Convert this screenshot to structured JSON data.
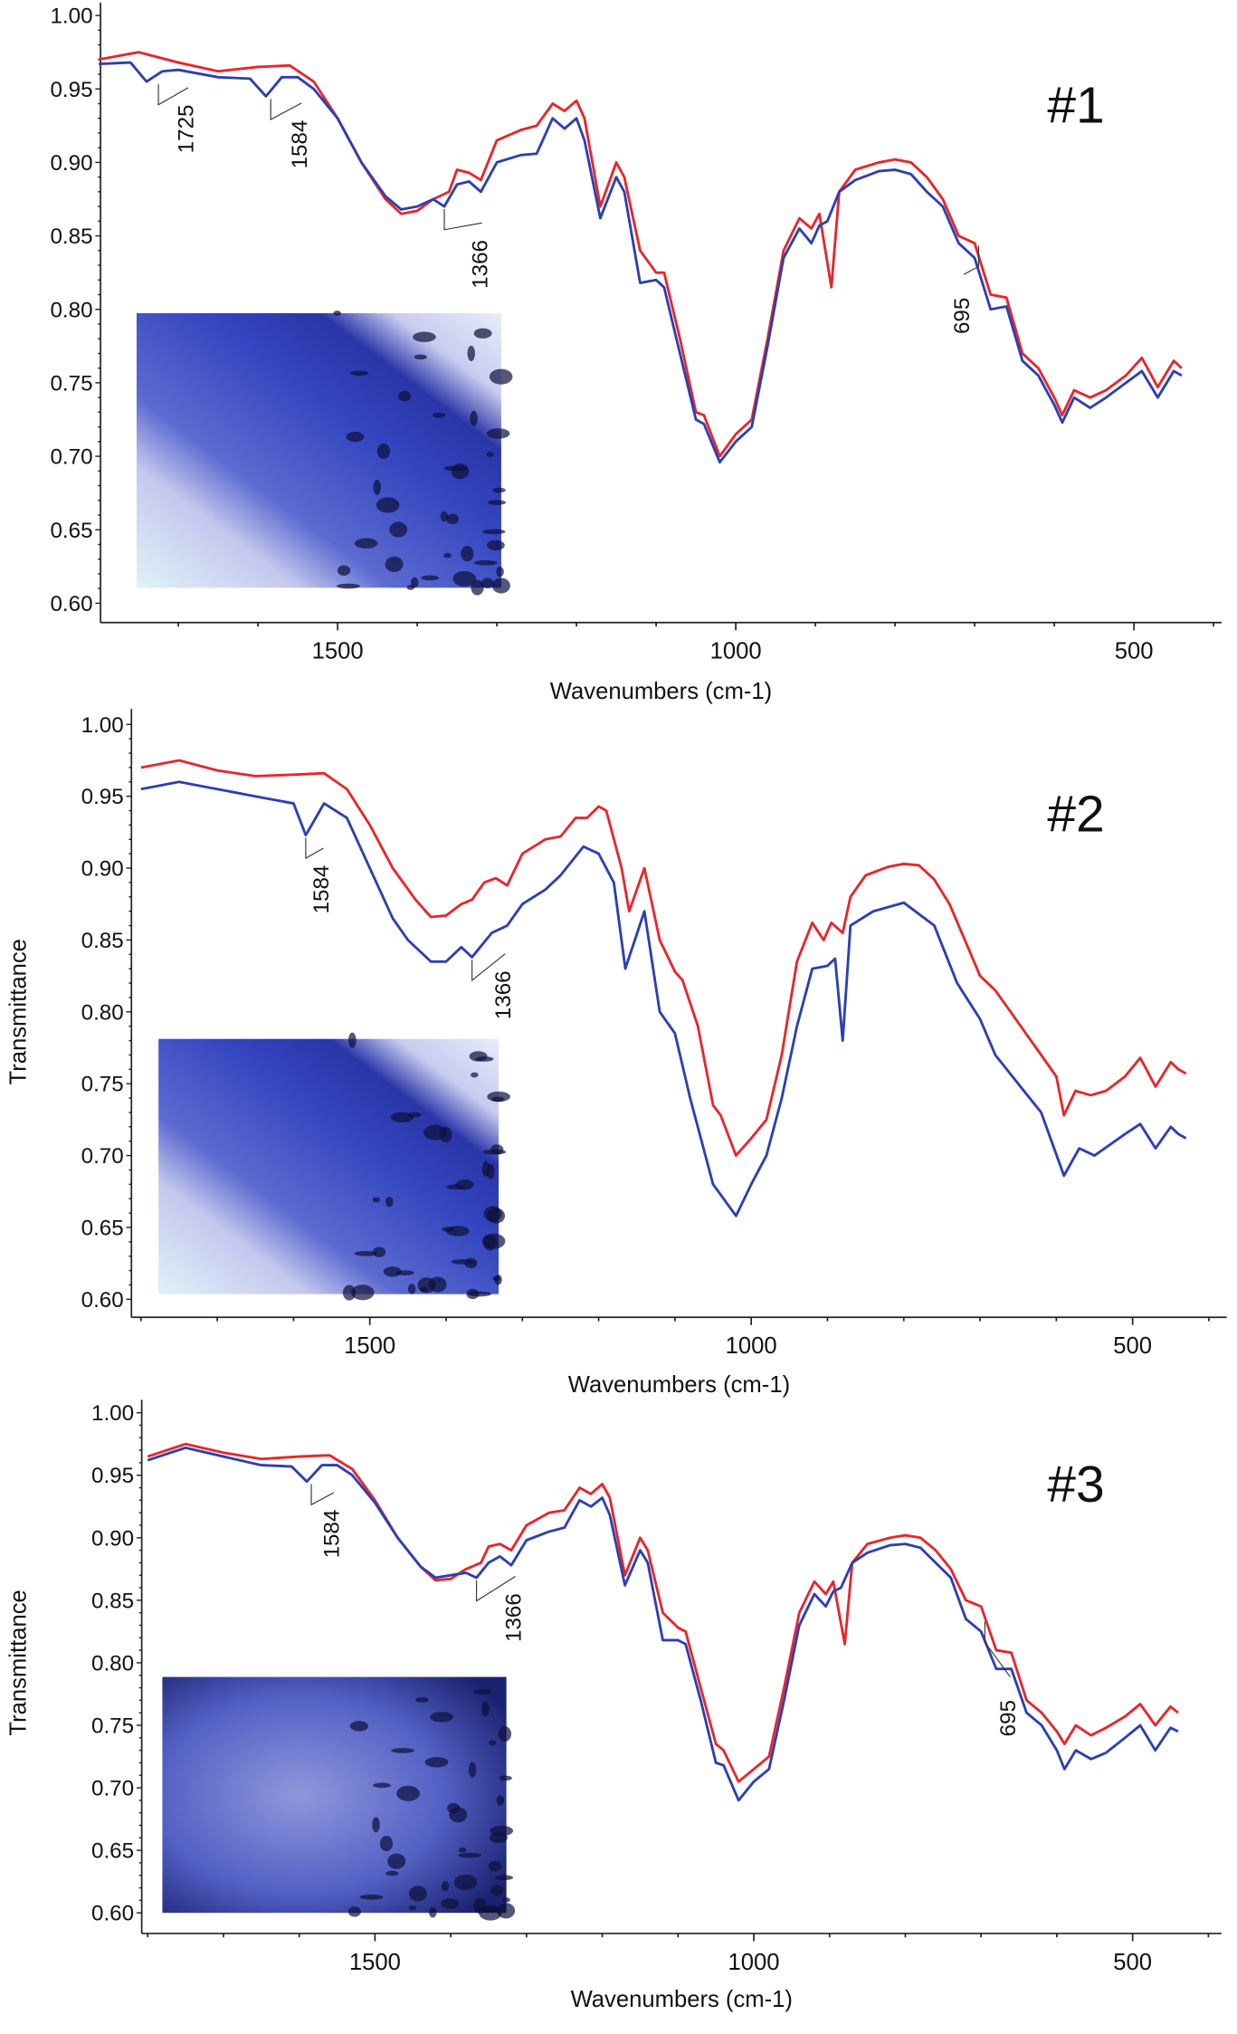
{
  "chart_data": [
    {
      "type": "line",
      "panel_label": "#1",
      "xlabel": "Wavenumbers (cm-1)",
      "ylabel": "",
      "x_reversed": true,
      "xlim": [
        1800,
        400
      ],
      "ylim": [
        0.6,
        1.0
      ],
      "x_ticks": [
        "1500",
        "1000",
        "500"
      ],
      "y_ticks": [
        "1.00",
        "0.95",
        "0.90",
        "0.85",
        "0.80",
        "0.75",
        "0.70",
        "0.65",
        "0.60"
      ],
      "grid": false,
      "annotations": [
        "1725",
        "1584",
        "1366",
        "695"
      ],
      "series": [
        {
          "color": "#e8262a",
          "x": [
            1800,
            1750,
            1700,
            1650,
            1600,
            1560,
            1530,
            1500,
            1470,
            1440,
            1420,
            1400,
            1380,
            1360,
            1350,
            1335,
            1320,
            1300,
            1270,
            1250,
            1230,
            1215,
            1200,
            1190,
            1170,
            1150,
            1140,
            1120,
            1100,
            1090,
            1070,
            1050,
            1040,
            1020,
            1000,
            980,
            960,
            940,
            920,
            905,
            895,
            880,
            870,
            850,
            820,
            800,
            780,
            760,
            740,
            720,
            700,
            680,
            660,
            640,
            620,
            600,
            590,
            575,
            555,
            535,
            510,
            490,
            470,
            450,
            440
          ],
          "y": [
            0.97,
            0.975,
            0.968,
            0.962,
            0.965,
            0.966,
            0.955,
            0.93,
            0.9,
            0.875,
            0.865,
            0.867,
            0.875,
            0.88,
            0.895,
            0.893,
            0.888,
            0.915,
            0.922,
            0.925,
            0.94,
            0.935,
            0.942,
            0.93,
            0.87,
            0.9,
            0.89,
            0.84,
            0.825,
            0.825,
            0.78,
            0.73,
            0.728,
            0.7,
            0.715,
            0.725,
            0.78,
            0.84,
            0.862,
            0.855,
            0.865,
            0.815,
            0.88,
            0.895,
            0.9,
            0.902,
            0.9,
            0.89,
            0.875,
            0.85,
            0.845,
            0.81,
            0.808,
            0.77,
            0.76,
            0.74,
            0.728,
            0.745,
            0.74,
            0.745,
            0.755,
            0.767,
            0.747,
            0.765,
            0.76
          ]
        },
        {
          "color": "#2b3fb5",
          "x": [
            1800,
            1760,
            1740,
            1720,
            1700,
            1650,
            1610,
            1590,
            1570,
            1550,
            1530,
            1500,
            1470,
            1440,
            1420,
            1400,
            1380,
            1366,
            1350,
            1335,
            1320,
            1300,
            1270,
            1250,
            1230,
            1215,
            1200,
            1190,
            1170,
            1150,
            1140,
            1120,
            1100,
            1090,
            1070,
            1050,
            1040,
            1020,
            1000,
            980,
            960,
            940,
            920,
            905,
            895,
            885,
            870,
            850,
            820,
            800,
            780,
            760,
            740,
            720,
            700,
            680,
            660,
            640,
            620,
            600,
            590,
            575,
            555,
            535,
            510,
            490,
            470,
            450,
            440
          ],
          "y": [
            0.967,
            0.968,
            0.955,
            0.962,
            0.963,
            0.958,
            0.957,
            0.945,
            0.958,
            0.958,
            0.95,
            0.93,
            0.9,
            0.877,
            0.868,
            0.87,
            0.875,
            0.87,
            0.885,
            0.887,
            0.88,
            0.9,
            0.905,
            0.906,
            0.93,
            0.923,
            0.93,
            0.915,
            0.862,
            0.89,
            0.88,
            0.818,
            0.82,
            0.815,
            0.77,
            0.725,
            0.722,
            0.696,
            0.71,
            0.72,
            0.775,
            0.835,
            0.855,
            0.845,
            0.857,
            0.86,
            0.88,
            0.888,
            0.894,
            0.895,
            0.892,
            0.88,
            0.87,
            0.845,
            0.835,
            0.8,
            0.802,
            0.765,
            0.755,
            0.735,
            0.723,
            0.74,
            0.733,
            0.74,
            0.75,
            0.758,
            0.74,
            0.758,
            0.755
          ]
        }
      ]
    },
    {
      "type": "line",
      "panel_label": "#2",
      "xlabel": "Wavenumbers (cm-1)",
      "ylabel": "Transmittance",
      "x_reversed": true,
      "xlim": [
        1800,
        390
      ],
      "ylim": [
        0.6,
        1.0
      ],
      "x_ticks": [
        "1500",
        "1000",
        "500"
      ],
      "y_ticks": [
        "1.00",
        "0.95",
        "0.90",
        "0.85",
        "0.80",
        "0.75",
        "0.70",
        "0.65",
        "0.60"
      ],
      "grid": false,
      "annotations": [
        "1584",
        "1366"
      ],
      "series": [
        {
          "color": "#e8262a",
          "x": [
            1800,
            1750,
            1700,
            1650,
            1600,
            1560,
            1530,
            1500,
            1470,
            1440,
            1420,
            1400,
            1380,
            1366,
            1350,
            1335,
            1320,
            1300,
            1270,
            1250,
            1230,
            1215,
            1200,
            1190,
            1170,
            1160,
            1140,
            1120,
            1100,
            1090,
            1070,
            1050,
            1040,
            1020,
            1000,
            980,
            960,
            940,
            920,
            905,
            895,
            880,
            870,
            850,
            820,
            800,
            780,
            760,
            740,
            720,
            700,
            680,
            660,
            640,
            620,
            600,
            590,
            575,
            555,
            535,
            510,
            490,
            470,
            450,
            440,
            430
          ],
          "y": [
            0.97,
            0.975,
            0.968,
            0.964,
            0.965,
            0.966,
            0.955,
            0.93,
            0.9,
            0.878,
            0.866,
            0.867,
            0.875,
            0.878,
            0.89,
            0.893,
            0.888,
            0.91,
            0.92,
            0.922,
            0.935,
            0.935,
            0.943,
            0.94,
            0.9,
            0.87,
            0.9,
            0.85,
            0.828,
            0.822,
            0.79,
            0.735,
            0.728,
            0.7,
            0.712,
            0.725,
            0.77,
            0.835,
            0.862,
            0.85,
            0.862,
            0.855,
            0.88,
            0.895,
            0.901,
            0.903,
            0.902,
            0.892,
            0.875,
            0.85,
            0.825,
            0.815,
            0.8,
            0.785,
            0.77,
            0.755,
            0.728,
            0.745,
            0.742,
            0.745,
            0.755,
            0.768,
            0.748,
            0.765,
            0.76,
            0.757
          ]
        },
        {
          "color": "#2b3fb5",
          "x": [
            1800,
            1750,
            1700,
            1650,
            1600,
            1584,
            1560,
            1530,
            1500,
            1470,
            1450,
            1420,
            1400,
            1380,
            1366,
            1340,
            1320,
            1300,
            1270,
            1250,
            1220,
            1200,
            1180,
            1165,
            1140,
            1120,
            1100,
            1080,
            1050,
            1020,
            1000,
            980,
            960,
            940,
            920,
            900,
            890,
            880,
            870,
            840,
            800,
            760,
            730,
            700,
            680,
            650,
            620,
            590,
            570,
            550,
            510,
            490,
            470,
            450,
            440,
            430
          ],
          "y": [
            0.955,
            0.96,
            0.955,
            0.95,
            0.945,
            0.923,
            0.945,
            0.935,
            0.9,
            0.865,
            0.85,
            0.835,
            0.835,
            0.845,
            0.838,
            0.855,
            0.86,
            0.875,
            0.885,
            0.895,
            0.915,
            0.91,
            0.89,
            0.83,
            0.87,
            0.8,
            0.785,
            0.74,
            0.68,
            0.658,
            0.68,
            0.7,
            0.74,
            0.79,
            0.83,
            0.832,
            0.837,
            0.78,
            0.86,
            0.87,
            0.876,
            0.86,
            0.82,
            0.795,
            0.77,
            0.75,
            0.73,
            0.686,
            0.705,
            0.7,
            0.715,
            0.722,
            0.705,
            0.72,
            0.715,
            0.712
          ]
        }
      ]
    },
    {
      "type": "line",
      "panel_label": "#3",
      "xlabel": "Wavenumbers (cm-1)",
      "ylabel": "Transmittance",
      "x_reversed": true,
      "xlim": [
        1800,
        400
      ],
      "ylim": [
        0.6,
        1.0
      ],
      "x_ticks": [
        "1500",
        "1000",
        "500"
      ],
      "y_ticks": [
        "1.00",
        "0.95",
        "0.90",
        "0.85",
        "0.80",
        "0.75",
        "0.70",
        "0.65",
        "0.60"
      ],
      "grid": false,
      "annotations": [
        "1584",
        "1366",
        "695"
      ],
      "series": [
        {
          "color": "#e8262a",
          "x": [
            1800,
            1750,
            1700,
            1650,
            1600,
            1560,
            1530,
            1500,
            1470,
            1440,
            1420,
            1400,
            1380,
            1360,
            1350,
            1335,
            1320,
            1300,
            1270,
            1250,
            1230,
            1215,
            1200,
            1190,
            1170,
            1150,
            1140,
            1120,
            1100,
            1090,
            1070,
            1050,
            1040,
            1020,
            1000,
            980,
            960,
            940,
            920,
            905,
            895,
            880,
            870,
            850,
            820,
            800,
            780,
            760,
            740,
            720,
            700,
            680,
            660,
            640,
            620,
            600,
            590,
            575,
            555,
            535,
            510,
            490,
            470,
            450,
            440
          ],
          "y": [
            0.965,
            0.975,
            0.968,
            0.963,
            0.965,
            0.966,
            0.955,
            0.93,
            0.9,
            0.877,
            0.866,
            0.867,
            0.875,
            0.88,
            0.893,
            0.895,
            0.89,
            0.91,
            0.92,
            0.922,
            0.94,
            0.935,
            0.943,
            0.932,
            0.87,
            0.9,
            0.89,
            0.84,
            0.828,
            0.825,
            0.78,
            0.735,
            0.73,
            0.705,
            0.715,
            0.725,
            0.78,
            0.84,
            0.865,
            0.855,
            0.865,
            0.815,
            0.88,
            0.895,
            0.9,
            0.902,
            0.9,
            0.89,
            0.875,
            0.85,
            0.845,
            0.81,
            0.808,
            0.77,
            0.76,
            0.745,
            0.735,
            0.75,
            0.742,
            0.748,
            0.757,
            0.767,
            0.75,
            0.765,
            0.76
          ]
        },
        {
          "color": "#2b3fb5",
          "x": [
            1800,
            1750,
            1700,
            1650,
            1610,
            1590,
            1570,
            1550,
            1530,
            1500,
            1470,
            1440,
            1420,
            1400,
            1380,
            1366,
            1350,
            1335,
            1320,
            1300,
            1270,
            1250,
            1230,
            1215,
            1200,
            1190,
            1170,
            1150,
            1140,
            1120,
            1100,
            1090,
            1070,
            1050,
            1040,
            1020,
            1000,
            980,
            960,
            940,
            920,
            905,
            895,
            885,
            870,
            850,
            820,
            800,
            780,
            760,
            740,
            720,
            700,
            680,
            660,
            640,
            620,
            600,
            590,
            575,
            555,
            535,
            510,
            490,
            470,
            450,
            440
          ],
          "y": [
            0.962,
            0.972,
            0.965,
            0.958,
            0.957,
            0.945,
            0.958,
            0.958,
            0.95,
            0.928,
            0.9,
            0.877,
            0.868,
            0.87,
            0.872,
            0.868,
            0.88,
            0.885,
            0.878,
            0.898,
            0.905,
            0.908,
            0.93,
            0.925,
            0.932,
            0.918,
            0.862,
            0.89,
            0.88,
            0.818,
            0.818,
            0.815,
            0.77,
            0.72,
            0.718,
            0.69,
            0.705,
            0.715,
            0.77,
            0.83,
            0.855,
            0.845,
            0.857,
            0.86,
            0.88,
            0.888,
            0.894,
            0.895,
            0.892,
            0.88,
            0.868,
            0.835,
            0.825,
            0.795,
            0.795,
            0.76,
            0.75,
            0.73,
            0.715,
            0.73,
            0.723,
            0.728,
            0.74,
            0.75,
            0.73,
            0.748,
            0.745
          ]
        }
      ]
    }
  ]
}
